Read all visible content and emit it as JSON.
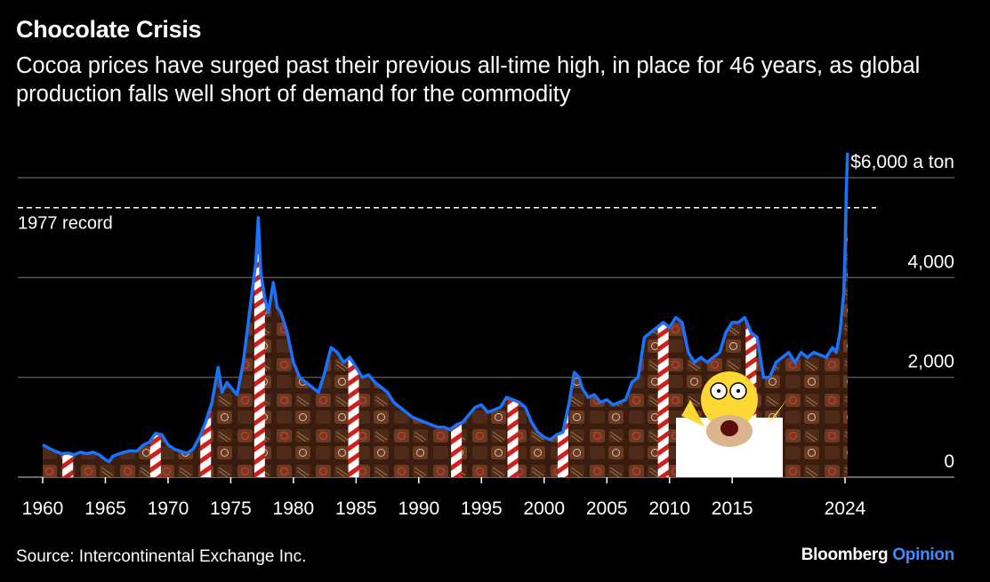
{
  "header": {
    "title": "Chocolate Crisis",
    "subtitle": "Cocoa prices have surged past their previous all-time high, in place for 46 years, as global production falls well short of demand for the commodity"
  },
  "footer": {
    "source": "Source: Intercontinental Exchange Inc.",
    "brand_main": "Bloomberg",
    "brand_accent": "Opinion"
  },
  "colors": {
    "background": "#000000",
    "line": "#1a73ff",
    "grid": "#555555",
    "text": "#ffffff",
    "brand_accent": "#3d8bff",
    "candy_dark": "#3b1d10",
    "candy_mid": "#6a3a22"
  },
  "chart_data": {
    "type": "line",
    "series": [
      {
        "x": [
          1960,
          1960.5,
          1961,
          1961.5,
          1962,
          1962.5,
          1963,
          1963.5,
          1964,
          1964.5,
          1965,
          1965.3,
          1965.6,
          1966,
          1966.5,
          1967,
          1967.5,
          1968,
          1968.5,
          1969,
          1969.5,
          1970,
          1970.5,
          1971,
          1971.5,
          1972,
          1972.5,
          1973,
          1973.5,
          1974,
          1974.3,
          1974.7,
          1975,
          1975.5,
          1976,
          1976.5,
          1977,
          1977.2,
          1977.4,
          1977.7,
          1978,
          1978.4,
          1978.7,
          1979,
          1979.5,
          1980,
          1980.5,
          1981,
          1981.5,
          1982,
          1982.5,
          1983,
          1983.5,
          1984,
          1984.5,
          1985,
          1985.5,
          1986,
          1986.5,
          1987,
          1987.5,
          1988,
          1988.5,
          1989,
          1989.5,
          1990,
          1990.5,
          1991,
          1991.5,
          1992,
          1992.5,
          1993,
          1993.5,
          1994,
          1994.5,
          1995,
          1995.5,
          1996,
          1996.5,
          1997,
          1997.5,
          1998,
          1998.5,
          1999,
          1999.5,
          2000,
          2000.5,
          2001,
          2001.5,
          2002,
          2002.4,
          2002.8,
          2003,
          2003.5,
          2004,
          2004.5,
          2005,
          2005.5,
          2006,
          2006.5,
          2007,
          2007.5,
          2008,
          2008.5,
          2009,
          2009.5,
          2010,
          2010.5,
          2011,
          2011.5,
          2012,
          2012.5,
          2013,
          2013.5,
          2014,
          2014.5,
          2015,
          2015.5,
          2016,
          2016.5,
          2017,
          2017.5,
          2018,
          2018.5,
          2019,
          2019.5,
          2020,
          2020.5,
          2021,
          2021.5,
          2022,
          2022.5,
          2023,
          2023.3,
          2023.6,
          2023.9,
          2024,
          2024.1,
          2024.2
        ],
        "y": [
          650,
          580,
          520,
          470,
          480,
          450,
          500,
          470,
          500,
          450,
          350,
          310,
          420,
          460,
          500,
          530,
          520,
          640,
          700,
          880,
          850,
          650,
          560,
          520,
          480,
          560,
          800,
          1100,
          1500,
          2200,
          1700,
          1900,
          1800,
          1650,
          2300,
          3300,
          4300,
          5200,
          4100,
          3600,
          3300,
          3900,
          3400,
          3300,
          2900,
          2300,
          2000,
          1900,
          1800,
          1700,
          2100,
          2600,
          2500,
          2300,
          2400,
          2200,
          2000,
          2050,
          1900,
          1800,
          1700,
          1500,
          1400,
          1300,
          1200,
          1150,
          1100,
          1050,
          1000,
          1000,
          950,
          1050,
          1100,
          1250,
          1400,
          1450,
          1300,
          1350,
          1400,
          1600,
          1550,
          1500,
          1400,
          1100,
          900,
          800,
          750,
          850,
          900,
          1500,
          2100,
          2000,
          1800,
          1600,
          1650,
          1500,
          1550,
          1450,
          1500,
          1550,
          1900,
          2000,
          2800,
          2900,
          3000,
          3100,
          3000,
          3200,
          3100,
          2500,
          2300,
          2400,
          2300,
          2400,
          2500,
          2900,
          3100,
          3100,
          3200,
          2900,
          2800,
          2000,
          2000,
          2300,
          2400,
          2500,
          2300,
          2500,
          2400,
          2500,
          2450,
          2400,
          2600,
          2500,
          2900,
          3700,
          4500,
          5700,
          6500
        ]
      }
    ],
    "xlim": [
      1959.5,
      2025
    ],
    "ylim": [
      0,
      6000
    ],
    "x_ticks": [
      1960,
      1965,
      1970,
      1975,
      1980,
      1985,
      1990,
      1995,
      2000,
      2005,
      2010,
      2015,
      2024
    ],
    "x_tick_labels": [
      "1960",
      "1965",
      "1970",
      "1975",
      "1980",
      "1985",
      "1990",
      "1995",
      "2000",
      "2005",
      "2010",
      "2015",
      "2024"
    ],
    "y_ticks": [
      0,
      2000,
      4000,
      6000
    ],
    "y_tick_labels": [
      "0",
      "2,000",
      "4,000",
      "$6,000 a ton"
    ],
    "reference_line": {
      "value": 5400,
      "label": "1977 record"
    },
    "grid": true,
    "y_axis_side": "right"
  }
}
